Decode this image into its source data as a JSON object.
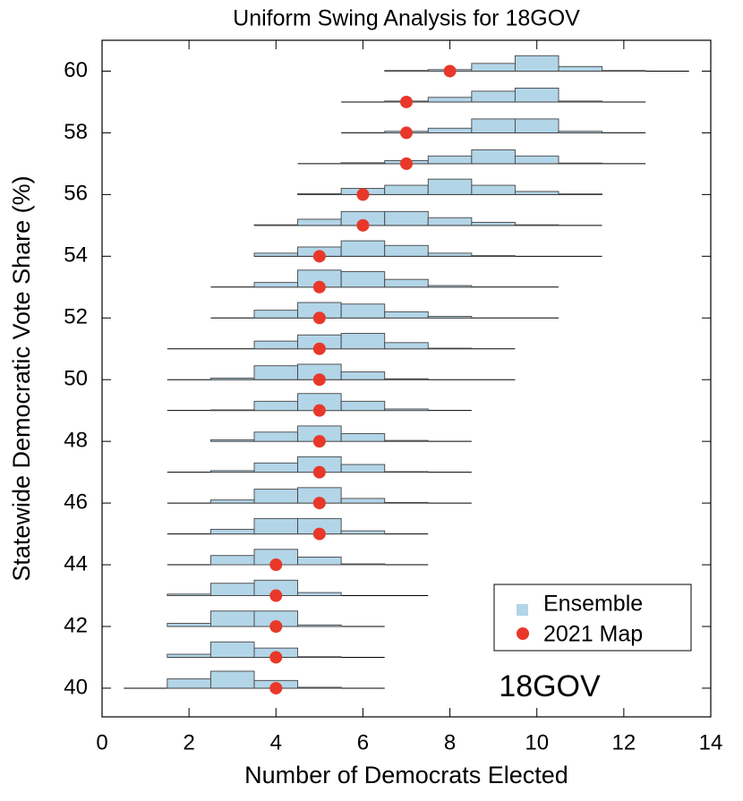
{
  "chart_data": {
    "type": "ridge",
    "title": "Uniform Swing Analysis for 18GOV",
    "xlabel": "Number of Democrats Elected",
    "ylabel": "Statewide Democratic Vote Share (%)",
    "annotation": "18GOV",
    "xlim": [
      0,
      14
    ],
    "xticks": [
      0,
      2,
      4,
      6,
      8,
      10,
      12,
      14
    ],
    "ylim": [
      39.07,
      61
    ],
    "yticks": [
      40,
      42,
      44,
      46,
      48,
      50,
      52,
      54,
      56,
      58,
      60
    ],
    "ensemble": {
      "name": "Ensemble",
      "color": "#b3d5e8"
    },
    "map": {
      "name": "2021 Map",
      "color": "#e8382a"
    },
    "legend": "lower right",
    "rows": [
      {
        "vote_share": 40,
        "range": [
          0.5,
          6.5
        ],
        "bins": [
          1.5,
          2.5,
          3.5,
          4.5,
          5.5
        ],
        "heights": [
          0.3,
          0.55,
          0.25,
          0.03
        ],
        "map": 4
      },
      {
        "vote_share": 41,
        "range": [
          1.5,
          6.5
        ],
        "bins": [
          1.5,
          2.5,
          3.5,
          4.5,
          5.5
        ],
        "heights": [
          0.1,
          0.5,
          0.3,
          0.02
        ],
        "map": 4
      },
      {
        "vote_share": 42,
        "range": [
          1.5,
          6.5
        ],
        "bins": [
          1.5,
          2.5,
          3.5,
          4.5,
          5.5
        ],
        "heights": [
          0.1,
          0.5,
          0.5,
          0.05
        ],
        "map": 4
      },
      {
        "vote_share": 43,
        "range": [
          1.5,
          7.5
        ],
        "bins": [
          1.5,
          2.5,
          3.5,
          4.5,
          5.5
        ],
        "heights": [
          0.05,
          0.4,
          0.5,
          0.1
        ],
        "map": 4
      },
      {
        "vote_share": 44,
        "range": [
          1.5,
          7.5
        ],
        "bins": [
          2.5,
          3.5,
          4.5,
          5.5,
          6.5
        ],
        "heights": [
          0.3,
          0.5,
          0.25,
          0.03
        ],
        "map": 4
      },
      {
        "vote_share": 45,
        "range": [
          1.5,
          7.5
        ],
        "bins": [
          2.5,
          3.5,
          4.5,
          5.5,
          6.5
        ],
        "heights": [
          0.15,
          0.5,
          0.5,
          0.1
        ],
        "map": 5
      },
      {
        "vote_share": 46,
        "range": [
          1.5,
          8.5
        ],
        "bins": [
          2.5,
          3.5,
          4.5,
          5.5,
          6.5,
          7.5
        ],
        "heights": [
          0.1,
          0.45,
          0.5,
          0.15,
          0.02
        ],
        "map": 5
      },
      {
        "vote_share": 47,
        "range": [
          1.5,
          8.5
        ],
        "bins": [
          2.5,
          3.5,
          4.5,
          5.5,
          6.5,
          7.5
        ],
        "heights": [
          0.05,
          0.3,
          0.5,
          0.25,
          0.02
        ],
        "map": 5
      },
      {
        "vote_share": 48,
        "range": [
          2.5,
          8.5
        ],
        "bins": [
          2.5,
          3.5,
          4.5,
          5.5,
          6.5,
          7.5
        ],
        "heights": [
          0.05,
          0.3,
          0.5,
          0.25,
          0.03
        ],
        "map": 5
      },
      {
        "vote_share": 49,
        "range": [
          1.5,
          8.5
        ],
        "bins": [
          2.5,
          3.5,
          4.5,
          5.5,
          6.5,
          7.5
        ],
        "heights": [
          0.02,
          0.3,
          0.55,
          0.3,
          0.05
        ],
        "map": 5
      },
      {
        "vote_share": 50,
        "range": [
          1.5,
          9.5
        ],
        "bins": [
          2.5,
          3.5,
          4.5,
          5.5,
          6.5,
          7.5
        ],
        "heights": [
          0.05,
          0.45,
          0.5,
          0.25,
          0.03
        ],
        "map": 5
      },
      {
        "vote_share": 51,
        "range": [
          1.5,
          9.5
        ],
        "bins": [
          3.5,
          4.5,
          5.5,
          6.5,
          7.5,
          8.5
        ],
        "heights": [
          0.25,
          0.45,
          0.5,
          0.2,
          0.02
        ],
        "map": 5
      },
      {
        "vote_share": 52,
        "range": [
          2.5,
          10.5
        ],
        "bins": [
          3.5,
          4.5,
          5.5,
          6.5,
          7.5,
          8.5
        ],
        "heights": [
          0.25,
          0.5,
          0.45,
          0.2,
          0.05
        ],
        "map": 5
      },
      {
        "vote_share": 53,
        "range": [
          2.5,
          10.5
        ],
        "bins": [
          3.5,
          4.5,
          5.5,
          6.5,
          7.5,
          8.5
        ],
        "heights": [
          0.15,
          0.55,
          0.5,
          0.25,
          0.05
        ],
        "map": 5
      },
      {
        "vote_share": 54,
        "range": [
          3.5,
          11.5
        ],
        "bins": [
          3.5,
          4.5,
          5.5,
          6.5,
          7.5,
          8.5,
          9.5
        ],
        "heights": [
          0.1,
          0.3,
          0.5,
          0.35,
          0.1,
          0.02
        ],
        "map": 5
      },
      {
        "vote_share": 55,
        "range": [
          3.5,
          11.5
        ],
        "bins": [
          3.5,
          4.5,
          5.5,
          6.5,
          7.5,
          8.5,
          9.5,
          10.5
        ],
        "heights": [
          0.02,
          0.2,
          0.45,
          0.45,
          0.25,
          0.1,
          0.02
        ],
        "map": 6
      },
      {
        "vote_share": 56,
        "range": [
          4.5,
          11.5
        ],
        "bins": [
          4.5,
          5.5,
          6.5,
          7.5,
          8.5,
          9.5,
          10.5,
          11.5
        ],
        "heights": [
          0.03,
          0.2,
          0.3,
          0.5,
          0.3,
          0.1,
          0.02
        ],
        "map": 6
      },
      {
        "vote_share": 57,
        "range": [
          4.5,
          12.5
        ],
        "bins": [
          5.5,
          6.5,
          7.5,
          8.5,
          9.5,
          10.5,
          11.5
        ],
        "heights": [
          0.03,
          0.1,
          0.25,
          0.45,
          0.25,
          0.02
        ],
        "map": 7
      },
      {
        "vote_share": 58,
        "range": [
          5.5,
          12.5
        ],
        "bins": [
          6.5,
          7.5,
          8.5,
          9.5,
          10.5,
          11.5
        ],
        "heights": [
          0.05,
          0.15,
          0.45,
          0.45,
          0.05
        ],
        "map": 7
      },
      {
        "vote_share": 59,
        "range": [
          5.5,
          12.5
        ],
        "bins": [
          6.5,
          7.5,
          8.5,
          9.5,
          10.5,
          11.5
        ],
        "heights": [
          0.03,
          0.15,
          0.35,
          0.45,
          0.03
        ],
        "map": 7
      },
      {
        "vote_share": 60,
        "range": [
          6.5,
          13.5
        ],
        "bins": [
          6.5,
          7.5,
          8.5,
          9.5,
          10.5,
          11.5,
          12.5
        ],
        "heights": [
          0.02,
          0.05,
          0.25,
          0.5,
          0.15,
          0.02
        ],
        "map": 8
      }
    ]
  }
}
